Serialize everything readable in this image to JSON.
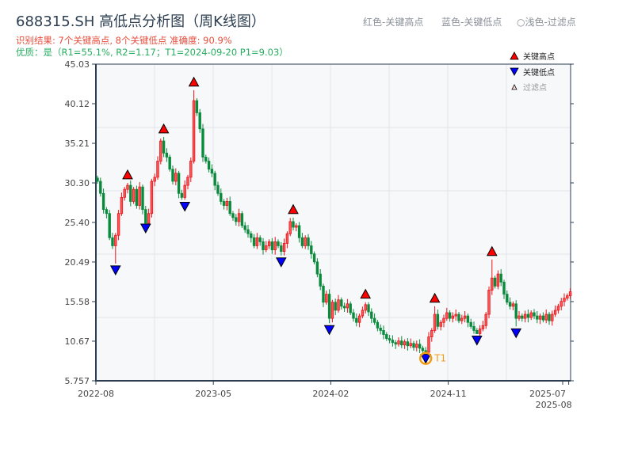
{
  "header": {
    "title": "688315.SH 高低点分析图（周K线图）",
    "result_line": "识别结果: 7个关键高点, 8个关键低点  准确度: 90.9%",
    "quality_line": "优质：是（R1=55.1%, R2=1.17；T1=2024-09-20 P1=9.03）",
    "legend_top": [
      "红色-关键高点",
      "蓝色-关键低点",
      "○浅色-过滤点"
    ]
  },
  "colors": {
    "up": "#e8141a",
    "down": "#0b8a3c",
    "high_marker": "#ff0000",
    "low_marker": "#0000ff",
    "t1_ring": "#f39c12",
    "axis": "#2c3e50",
    "plot_bg": "#f6f8fa"
  },
  "chart_data": {
    "type": "candlestick",
    "interval": "weekly",
    "ylim": [
      5.757,
      45.03
    ],
    "y_ticks": [
      "5.757",
      "10.67",
      "15.58",
      "20.49",
      "25.40",
      "30.30",
      "35.21",
      "40.12",
      "45.03"
    ],
    "x_ticks": [
      {
        "label": "2022-08",
        "week": 0
      },
      {
        "label": "2023-05",
        "week": 39
      },
      {
        "label": "2024-02",
        "week": 78
      },
      {
        "label": "2024-11",
        "week": 117
      },
      {
        "label": "2025-07",
        "week": 155
      },
      {
        "label": "2025-08",
        "week": 157
      }
    ],
    "grid": true,
    "legend": {
      "position": "top-right",
      "items": [
        "关键高点",
        "关键低点",
        "过滤点"
      ]
    },
    "close": [
      30.5,
      29.0,
      27.0,
      26.5,
      23.5,
      22.5,
      23.8,
      26.5,
      28.5,
      29.5,
      30.0,
      28.0,
      29.5,
      27.5,
      29.8,
      27.0,
      25.3,
      26.5,
      30.5,
      31.0,
      33.0,
      35.5,
      34.0,
      33.5,
      32.0,
      30.5,
      31.5,
      29.0,
      28.5,
      30.0,
      31.0,
      33.0,
      40.5,
      39.0,
      37.0,
      33.5,
      33.0,
      32.0,
      31.5,
      30.0,
      29.0,
      28.0,
      27.5,
      28.0,
      26.5,
      26.0,
      25.5,
      26.5,
      25.0,
      24.5,
      24.0,
      23.5,
      22.5,
      23.5,
      23.0,
      22.0,
      22.5,
      23.0,
      22.0,
      23.0,
      22.5,
      21.8,
      22.8,
      24.0,
      25.5,
      24.8,
      25.0,
      23.5,
      22.5,
      23.5,
      22.5,
      21.5,
      20.5,
      19.0,
      17.5,
      15.5,
      16.5,
      13.5,
      15.5,
      14.5,
      15.8,
      15.0,
      14.8,
      15.3,
      14.2,
      13.5,
      13.0,
      13.8,
      14.5,
      15.2,
      14.3,
      13.5,
      13.0,
      12.3,
      12.0,
      11.5,
      11.0,
      10.8,
      10.5,
      10.3,
      10.7,
      10.2,
      10.6,
      10.1,
      10.4,
      9.9,
      10.3,
      9.8,
      9.5,
      9.3,
      11.2,
      12.0,
      14.0,
      12.5,
      13.0,
      13.5,
      14.2,
      13.5,
      13.8,
      14.0,
      13.2,
      13.5,
      13.8,
      13.0,
      12.5,
      12.0,
      11.6,
      12.2,
      12.6,
      14.0,
      17.0,
      18.5,
      17.5,
      19.0,
      18.0,
      16.5,
      15.5,
      15.0,
      15.3,
      13.5,
      13.8,
      13.5,
      14.0,
      13.6,
      14.2,
      13.8,
      13.4,
      13.8,
      13.3,
      14.0,
      13.2,
      14.0,
      14.5,
      15.0,
      15.6,
      16.0,
      16.3,
      16.8
    ],
    "key_highs": [
      {
        "week": 10,
        "price": 30.8
      },
      {
        "week": 22,
        "price": 36.5
      },
      {
        "week": 32,
        "price": 42.3
      },
      {
        "week": 65,
        "price": 26.5
      },
      {
        "week": 89,
        "price": 16.0
      },
      {
        "week": 112,
        "price": 15.5
      },
      {
        "week": 131,
        "price": 21.3
      }
    ],
    "key_lows": [
      {
        "week": 6,
        "price": 20.0
      },
      {
        "week": 16,
        "price": 25.2
      },
      {
        "week": 29,
        "price": 27.9
      },
      {
        "week": 61,
        "price": 21.0
      },
      {
        "week": 77,
        "price": 12.6
      },
      {
        "week": 109,
        "price": 9.03
      },
      {
        "week": 126,
        "price": 11.3
      },
      {
        "week": 139,
        "price": 12.2
      }
    ],
    "t1": {
      "label": "T1",
      "week": 109,
      "price": 9.03
    }
  }
}
